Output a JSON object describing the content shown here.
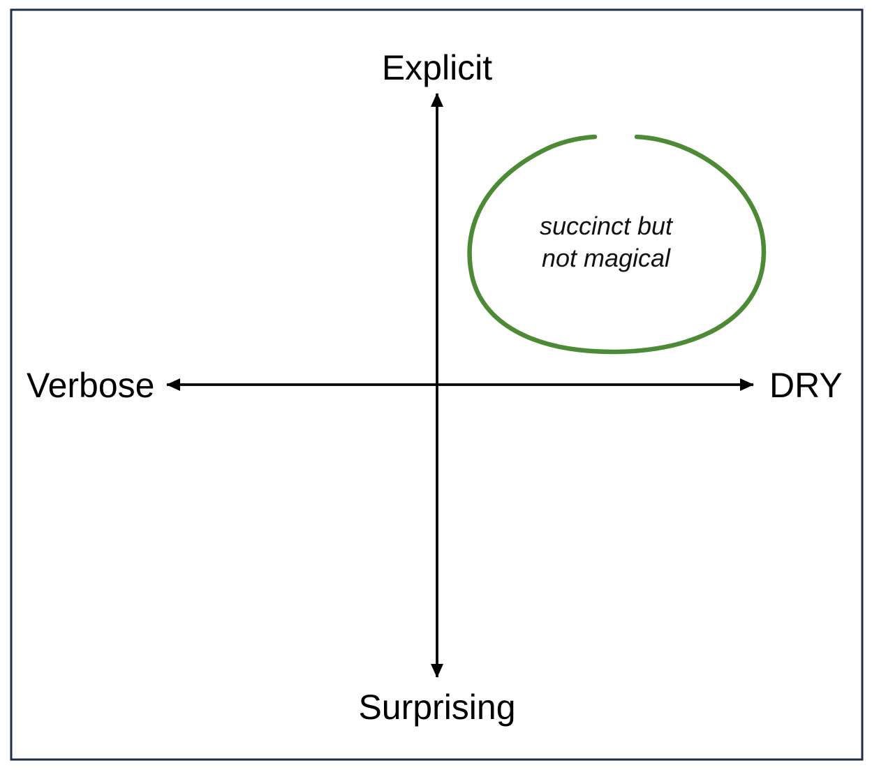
{
  "labels": {
    "top": "Explicit",
    "bottom": "Surprising",
    "left": "Verbose",
    "right": "DRY"
  },
  "annotation": {
    "line1": "succinct but",
    "line2": "not magical"
  },
  "colors": {
    "frame": "#1f2d4a",
    "axis": "#000000",
    "highlight": "#4d8a36"
  }
}
